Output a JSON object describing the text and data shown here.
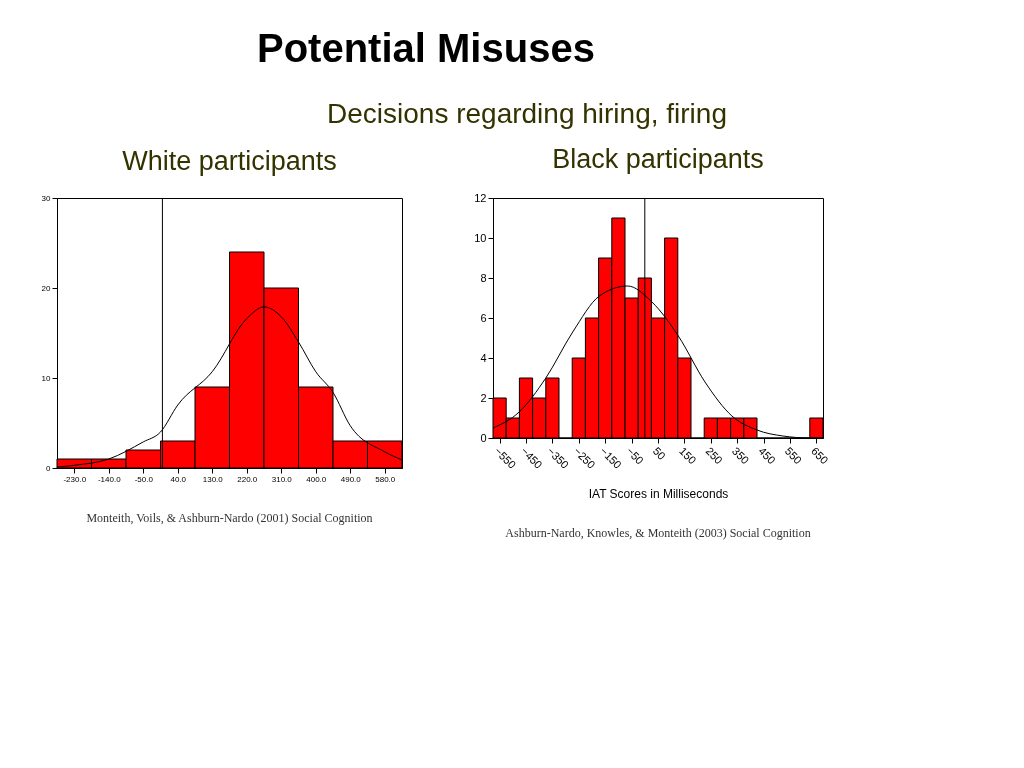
{
  "chart_data": [
    {
      "type": "histogram",
      "title": "White participants",
      "bins": [
        -275,
        -185,
        -95,
        -5,
        85,
        175,
        265,
        355,
        445,
        535,
        625
      ],
      "values": [
        1,
        1,
        2,
        3,
        9,
        24,
        20,
        9,
        3,
        3
      ],
      "color": "#ff0000",
      "series": [
        {
          "type": "line",
          "color": "#000000",
          "x": [
            -275,
            -230,
            -140,
            -50,
            -5,
            40,
            130,
            220,
            265,
            310,
            355,
            400,
            445,
            490,
            580,
            625
          ],
          "values": [
            0.1,
            0.3,
            1,
            2.9,
            4,
            7,
            10.7,
            16.6,
            17.9,
            16.8,
            14,
            10.7,
            8.4,
            4.7,
            1.8,
            0.9
          ]
        }
      ],
      "xlim": [
        -275,
        625
      ],
      "xticks": [
        {
          "value": -230,
          "label": "-230.0"
        },
        {
          "value": -140,
          "label": "-140.0"
        },
        {
          "value": -50,
          "label": "-50.0"
        },
        {
          "value": 40,
          "label": "40.0"
        },
        {
          "value": 130,
          "label": "130.0"
        },
        {
          "value": 220,
          "label": "220.0"
        },
        {
          "value": 310,
          "label": "310.0"
        },
        {
          "value": 400,
          "label": "400.0"
        },
        {
          "value": 490,
          "label": "490.0"
        },
        {
          "value": 580,
          "label": "580.0"
        }
      ],
      "ylim": [
        0,
        30
      ],
      "yticks": [
        0,
        10,
        20,
        30
      ],
      "ref_lines": [
        {
          "axis": "x",
          "value": 0,
          "color": "#000000"
        }
      ],
      "grid": false,
      "annotations": [
        "Potential Misuses",
        "Decisions regarding hiring, firing",
        "Monteith, Voils, & Ashburn-Nardo (2001) Social Cognition"
      ]
    },
    {
      "type": "histogram",
      "title": "Black participants",
      "xlabel": "IAT Scores in Milliseconds",
      "bins": [
        -575,
        -525,
        -475,
        -425,
        -375,
        -325,
        -275,
        -225,
        -175,
        -125,
        -75,
        -25,
        25,
        75,
        125,
        175,
        225,
        275,
        325,
        375,
        425,
        475,
        525,
        575,
        625,
        675
      ],
      "values": [
        2,
        1,
        3,
        2,
        3,
        0,
        4,
        6,
        9,
        11,
        7,
        8,
        6,
        10,
        4,
        0,
        1,
        1,
        1,
        1,
        0,
        0,
        0,
        0,
        1
      ],
      "color": "#ff0000",
      "series": [
        {
          "type": "line",
          "color": "#000000",
          "x": [
            -575,
            -476,
            -375,
            -273,
            -172,
            -65,
            27,
            127,
            228,
            330,
            425,
            523,
            627,
            675
          ],
          "values": [
            0.5,
            1.3,
            3,
            5.3,
            7.1,
            7.6,
            6.8,
            5.1,
            2.8,
            1.1,
            0.4,
            0.1,
            0,
            0
          ]
        }
      ],
      "xlim": [
        -575,
        675
      ],
      "xticks": [
        -550,
        -450,
        -350,
        -250,
        -150,
        -50,
        50,
        150,
        250,
        350,
        450,
        550,
        650
      ],
      "ylim": [
        0,
        12
      ],
      "yticks": [
        0,
        2,
        4,
        6,
        8,
        10,
        12
      ],
      "ref_lines": [
        {
          "axis": "x",
          "value": 0,
          "color": "#000000"
        }
      ],
      "grid": false,
      "annotations": [
        "Ashburn-Nardo, Knowles, & Monteith  (2003) Social Cognition"
      ]
    }
  ]
}
